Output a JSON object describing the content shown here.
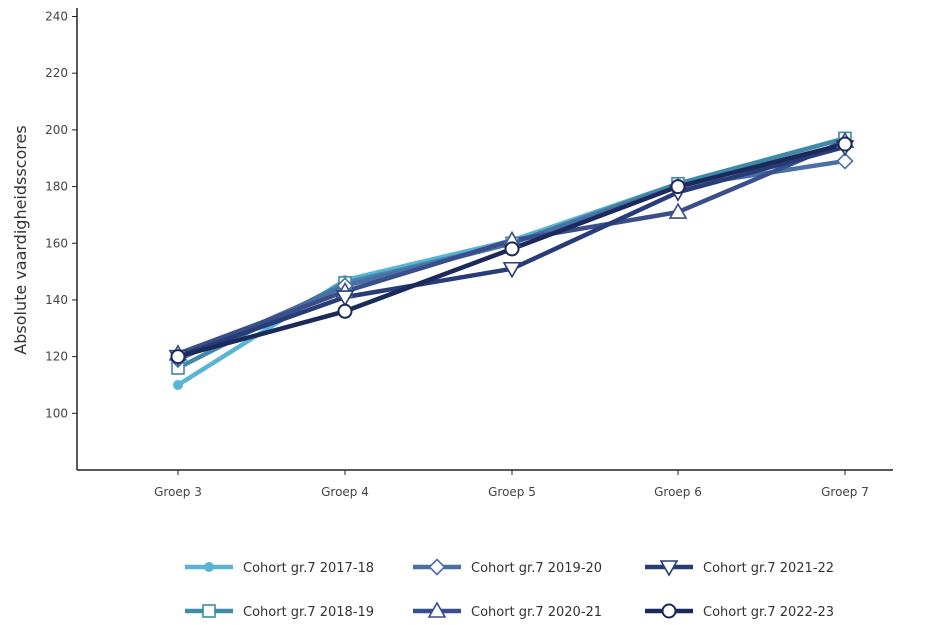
{
  "chart_data": {
    "type": "line",
    "ylabel": "Absolute vaardigheidsscores",
    "xlabel": "",
    "categories": [
      "Groep 3",
      "Groep 4",
      "Groep 5",
      "Groep 6",
      "Groep 7"
    ],
    "ylim": [
      80,
      243
    ],
    "yticks": [
      100,
      120,
      140,
      160,
      180,
      200,
      220,
      240
    ],
    "grid": false,
    "legend_position": "bottom",
    "series": [
      {
        "name": "Cohort gr.7 2017-18",
        "marker": "circle-filled",
        "color": "#5ab4d6",
        "values": [
          110,
          147,
          161,
          181,
          197
        ]
      },
      {
        "name": "Cohort gr.7 2018-19",
        "marker": "square",
        "color": "#3f8aa8",
        "values": [
          116,
          146,
          160,
          181,
          197
        ]
      },
      {
        "name": "Cohort gr.7 2019-20",
        "marker": "diamond",
        "color": "#4a6fa5",
        "values": [
          119,
          145,
          160,
          180,
          189
        ]
      },
      {
        "name": "Cohort gr.7 2020-21",
        "marker": "triangle-up",
        "color": "#3a4f8a",
        "values": [
          121,
          143,
          161,
          171,
          196
        ]
      },
      {
        "name": "Cohort gr.7 2021-22",
        "marker": "triangle-down",
        "color": "#283d78",
        "values": [
          120,
          141,
          151,
          178,
          194
        ]
      },
      {
        "name": "Cohort gr.7 2022-23",
        "marker": "circle-open",
        "color": "#1b2a5a",
        "values": [
          120,
          136,
          158,
          180,
          195
        ]
      }
    ]
  }
}
